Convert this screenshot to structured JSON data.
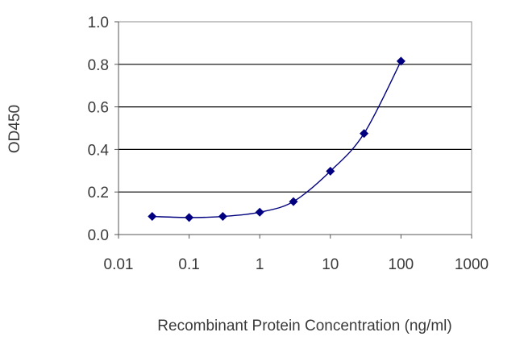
{
  "chart_data": {
    "type": "scatter",
    "title": "",
    "xlabel": "Recombinant Protein Concentration (ng/ml)",
    "ylabel": "OD450",
    "x_scale": "log",
    "xlim": [
      0.01,
      1000
    ],
    "ylim": [
      0,
      1.0
    ],
    "x_ticks": [
      0.01,
      0.1,
      1,
      10,
      100,
      1000
    ],
    "x_tick_labels": [
      "0.01",
      "0.1",
      "1",
      "10",
      "100",
      "1000"
    ],
    "y_ticks": [
      0,
      0.2,
      0.4,
      0.6,
      0.8,
      1.0
    ],
    "y_tick_labels": [
      "0.0",
      "0.2",
      "0.4",
      "0.6",
      "0.8",
      "1.0"
    ],
    "grid": "horizontal",
    "legend": "none",
    "series": [
      {
        "x": [
          0.03,
          0.1,
          0.3,
          1,
          3,
          10,
          30,
          100
        ],
        "y": [
          0.085,
          0.08,
          0.085,
          0.105,
          0.155,
          0.298,
          0.475,
          0.815
        ],
        "color": "#000080",
        "marker": "diamond",
        "fit_curve": true
      }
    ]
  }
}
